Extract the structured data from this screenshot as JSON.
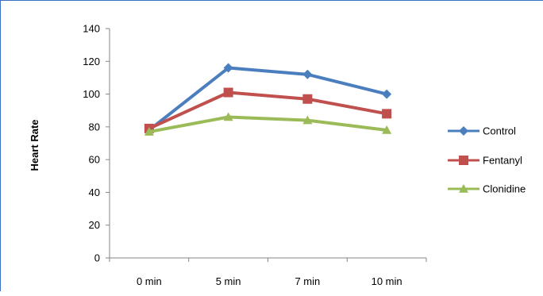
{
  "chart_data": {
    "type": "line",
    "title": "",
    "xlabel": "",
    "ylabel": "Heart Rate",
    "categories": [
      "0 min",
      "5 min",
      "7 min",
      "10 min"
    ],
    "ylim": [
      0,
      140
    ],
    "yticks": [
      0,
      20,
      40,
      60,
      80,
      100,
      120,
      140
    ],
    "grid": false,
    "legend_position": "right",
    "series": [
      {
        "name": "Control",
        "color": "#4a7ebf",
        "marker": "diamond",
        "values": [
          78,
          116,
          112,
          100
        ]
      },
      {
        "name": "Fentanyl",
        "color": "#c0504d",
        "marker": "square",
        "values": [
          79,
          101,
          97,
          88
        ]
      },
      {
        "name": "Clonidine",
        "color": "#9bbb59",
        "marker": "triangle",
        "values": [
          77,
          86,
          84,
          78
        ]
      }
    ]
  }
}
